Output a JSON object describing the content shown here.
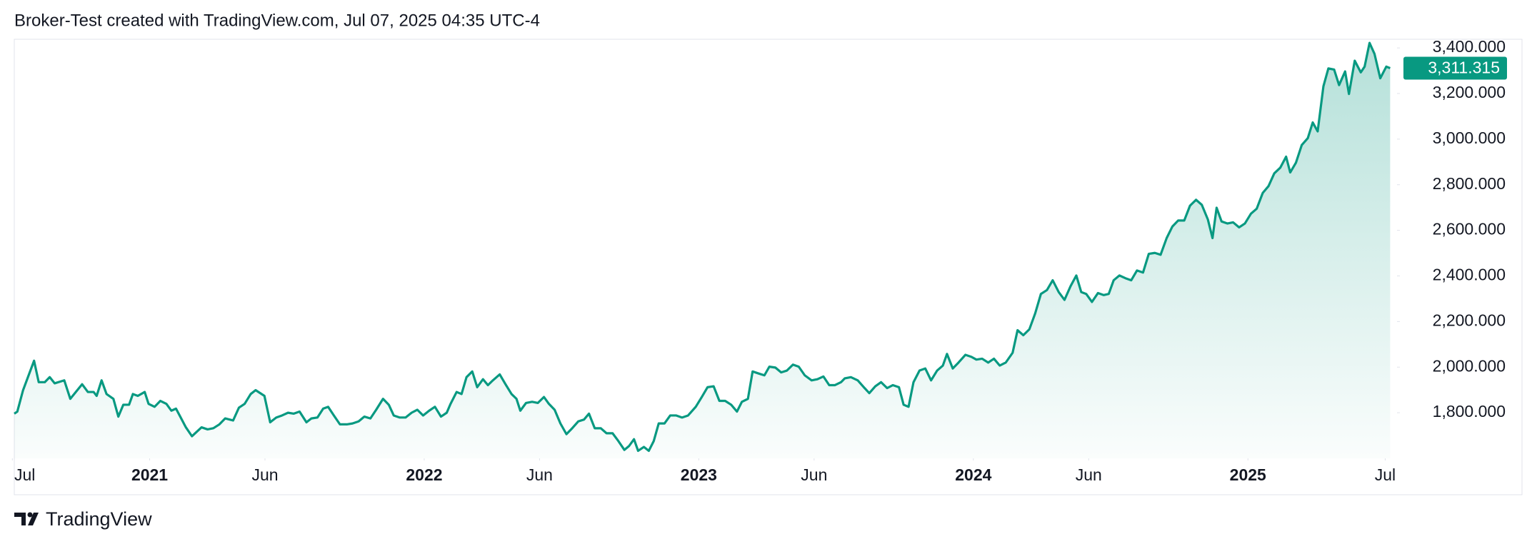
{
  "chart_data": {
    "type": "area",
    "title": "Broker-Test created with TradingView.com, Jul 07, 2025 04:35 UTC-4",
    "color": "#089981",
    "xlim": [
      2020.507,
      2025.543
    ],
    "ylim": [
      1600,
      3438
    ],
    "grid": false,
    "xticks": [
      {
        "value": 2020.5,
        "label": "Jul"
      },
      {
        "value": 2021,
        "label": "2021"
      },
      {
        "value": 2021.42,
        "label": "Jun"
      },
      {
        "value": 2022,
        "label": "2022"
      },
      {
        "value": 2022.42,
        "label": "Jun"
      },
      {
        "value": 2023,
        "label": "2023"
      },
      {
        "value": 2023.42,
        "label": "Jun"
      },
      {
        "value": 2024,
        "label": "2024"
      },
      {
        "value": 2024.42,
        "label": "Jun"
      },
      {
        "value": 2025,
        "label": "2025"
      },
      {
        "value": 2025.5,
        "label": "Jul"
      }
    ],
    "yticks": [
      {
        "value": 1800,
        "label": "1,800.000"
      },
      {
        "value": 2000,
        "label": "2,000.000"
      },
      {
        "value": 2200,
        "label": "2,200.000"
      },
      {
        "value": 2400,
        "label": "2,400.000"
      },
      {
        "value": 2600,
        "label": "2,600.000"
      },
      {
        "value": 2800,
        "label": "2,800.000"
      },
      {
        "value": 3000,
        "label": "3,000.000"
      },
      {
        "value": 3200,
        "label": "3,200.000"
      },
      {
        "value": 3400,
        "label": "3,400.000"
      }
    ],
    "last_price": {
      "value": 3311.315,
      "label": "3,311.315"
    },
    "x": [
      2020.507,
      2020.518,
      2020.539,
      2020.579,
      2020.596,
      2020.618,
      2020.636,
      2020.654,
      2020.689,
      2020.711,
      2020.754,
      2020.775,
      2020.796,
      2020.807,
      2020.825,
      2020.843,
      2020.868,
      2020.886,
      2020.904,
      2020.925,
      2020.939,
      2020.957,
      2020.982,
      2020.996,
      2021.018,
      2021.039,
      2021.061,
      2021.079,
      2021.096,
      2021.132,
      2021.154,
      2021.189,
      2021.211,
      2021.232,
      2021.254,
      2021.275,
      2021.304,
      2021.325,
      2021.346,
      2021.368,
      2021.386,
      2021.418,
      2021.439,
      2021.461,
      2021.482,
      2021.504,
      2021.525,
      2021.546,
      2021.571,
      2021.589,
      2021.611,
      2021.632,
      2021.65,
      2021.671,
      2021.693,
      2021.718,
      2021.739,
      2021.761,
      2021.782,
      2021.804,
      2021.825,
      2021.85,
      2021.871,
      2021.889,
      2021.911,
      2021.932,
      2021.954,
      2021.975,
      2021.996,
      2022.018,
      2022.039,
      2022.061,
      2022.082,
      2022.096,
      2022.118,
      2022.136,
      2022.154,
      2022.175,
      2022.193,
      2022.214,
      2022.232,
      2022.25,
      2022.275,
      2022.296,
      2022.318,
      2022.336,
      2022.35,
      2022.371,
      2022.393,
      2022.414,
      2022.436,
      2022.454,
      2022.475,
      2022.496,
      2022.518,
      2022.539,
      2022.561,
      2022.582,
      2022.6,
      2022.621,
      2022.643,
      2022.664,
      2022.686,
      2022.707,
      2022.729,
      2022.746,
      2022.764,
      2022.779,
      2022.8,
      2022.818,
      2022.836,
      2022.854,
      2022.875,
      2022.896,
      2022.918,
      2022.939,
      2022.961,
      2022.989,
      2023.011,
      2023.032,
      2023.054,
      2023.075,
      2023.096,
      2023.118,
      2023.139,
      2023.157,
      2023.179,
      2023.196,
      2023.218,
      2023.239,
      2023.257,
      2023.279,
      2023.3,
      2023.321,
      2023.343,
      2023.364,
      2023.386,
      2023.411,
      2023.432,
      2023.454,
      2023.475,
      2023.496,
      2023.518,
      2023.532,
      2023.554,
      2023.579,
      2023.604,
      2023.621,
      2023.643,
      2023.664,
      2023.686,
      2023.707,
      2023.729,
      2023.746,
      2023.764,
      2023.782,
      2023.804,
      2023.825,
      2023.846,
      2023.868,
      2023.889,
      2023.904,
      2023.925,
      2023.946,
      2023.971,
      2023.993,
      2024.011,
      2024.032,
      2024.054,
      2024.075,
      2024.096,
      2024.118,
      2024.143,
      2024.161,
      2024.182,
      2024.204,
      2024.225,
      2024.246,
      2024.268,
      2024.289,
      2024.311,
      2024.332,
      2024.354,
      2024.375,
      2024.393,
      2024.411,
      2024.432,
      2024.454,
      2024.475,
      2024.493,
      2024.511,
      2024.532,
      2024.554,
      2024.575,
      2024.596,
      2024.618,
      2024.639,
      2024.661,
      2024.682,
      2024.704,
      2024.725,
      2024.746,
      2024.768,
      2024.789,
      2024.811,
      2024.832,
      2024.854,
      2024.871,
      2024.886,
      2024.904,
      2024.925,
      2024.946,
      2024.968,
      2024.989,
      2025.011,
      2025.032,
      2025.054,
      2025.075,
      2025.096,
      2025.118,
      2025.139,
      2025.154,
      2025.175,
      2025.196,
      2025.218,
      2025.236,
      2025.254,
      2025.275,
      2025.293,
      2025.314,
      2025.332,
      2025.354,
      2025.368,
      2025.389,
      2025.411,
      2025.425,
      2025.443,
      2025.461,
      2025.482,
      2025.504,
      2025.518
    ],
    "values": [
      1796,
      1805,
      1899,
      2028,
      1934,
      1934,
      1956,
      1929,
      1942,
      1861,
      1925,
      1891,
      1891,
      1874,
      1942,
      1882,
      1861,
      1783,
      1835,
      1835,
      1882,
      1874,
      1891,
      1839,
      1826,
      1852,
      1839,
      1809,
      1818,
      1736,
      1697,
      1736,
      1727,
      1732,
      1749,
      1775,
      1766,
      1822,
      1839,
      1882,
      1899,
      1874,
      1758,
      1779,
      1788,
      1800,
      1796,
      1805,
      1758,
      1775,
      1779,
      1818,
      1826,
      1788,
      1749,
      1749,
      1753,
      1762,
      1783,
      1775,
      1813,
      1861,
      1835,
      1788,
      1779,
      1779,
      1800,
      1813,
      1788,
      1809,
      1826,
      1783,
      1800,
      1839,
      1891,
      1882,
      1956,
      1981,
      1912,
      1947,
      1921,
      1942,
      1968,
      1925,
      1882,
      1861,
      1809,
      1843,
      1848,
      1843,
      1869,
      1839,
      1813,
      1753,
      1706,
      1732,
      1762,
      1770,
      1796,
      1732,
      1732,
      1710,
      1710,
      1676,
      1637,
      1654,
      1684,
      1633,
      1650,
      1633,
      1676,
      1753,
      1753,
      1788,
      1788,
      1779,
      1788,
      1826,
      1869,
      1912,
      1916,
      1852,
      1852,
      1835,
      1805,
      1848,
      1861,
      1981,
      1972,
      1964,
      2002,
      1998,
      1977,
      1985,
      2011,
      2002,
      1964,
      1942,
      1947,
      1959,
      1921,
      1921,
      1934,
      1951,
      1956,
      1942,
      1908,
      1886,
      1916,
      1934,
      1908,
      1921,
      1912,
      1835,
      1826,
      1934,
      1985,
      1994,
      1942,
      1985,
      2007,
      2058,
      1994,
      2020,
      2054,
      2045,
      2033,
      2037,
      2020,
      2037,
      2007,
      2020,
      2063,
      2162,
      2140,
      2166,
      2235,
      2321,
      2338,
      2381,
      2329,
      2295,
      2355,
      2402,
      2329,
      2321,
      2286,
      2325,
      2316,
      2321,
      2381,
      2402,
      2390,
      2381,
      2424,
      2415,
      2497,
      2501,
      2493,
      2566,
      2617,
      2643,
      2643,
      2708,
      2734,
      2712,
      2648,
      2566,
      2699,
      2639,
      2630,
      2635,
      2613,
      2630,
      2673,
      2695,
      2764,
      2794,
      2850,
      2875,
      2923,
      2854,
      2897,
      2974,
      3004,
      3073,
      3034,
      3232,
      3310,
      3305,
      3237,
      3297,
      3198,
      3344,
      3293,
      3318,
      3422,
      3374,
      3267,
      3318,
      3311.315
    ]
  },
  "footer": {
    "brand": "TradingView"
  }
}
